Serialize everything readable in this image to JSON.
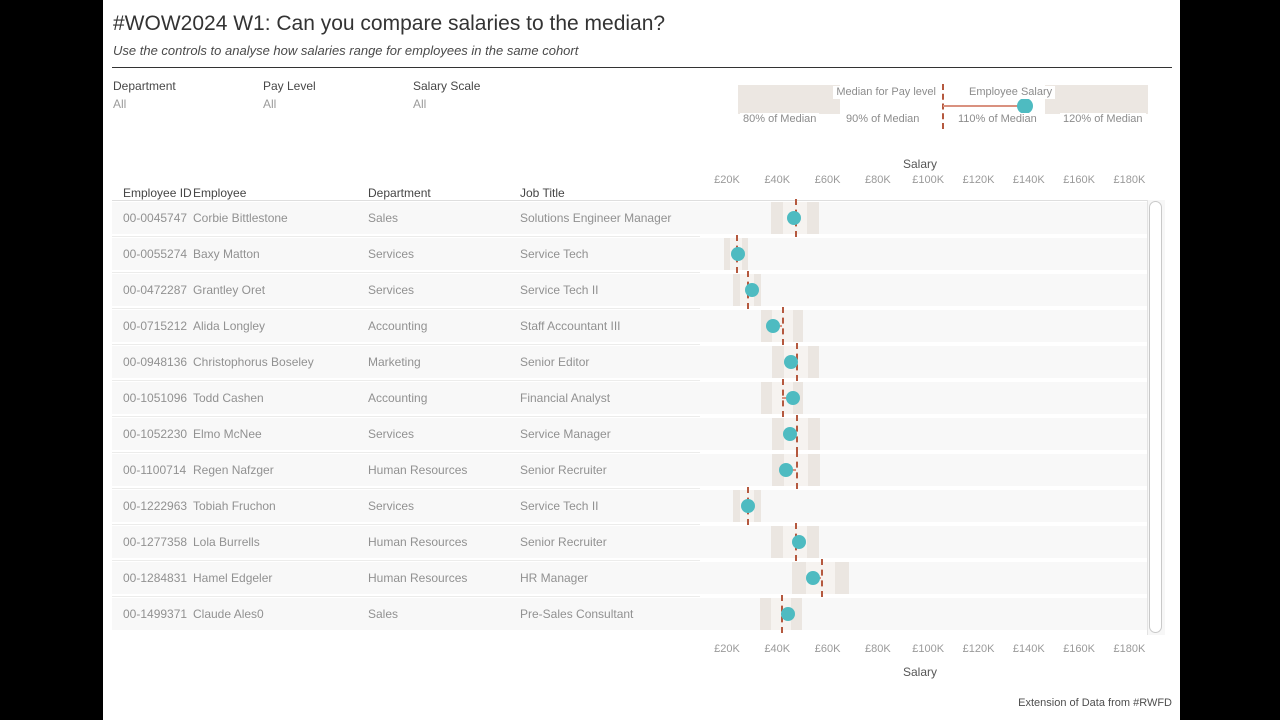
{
  "header": {
    "title": "#WOW2024 W1: Can you compare salaries to the median?",
    "subtitle": "Use the controls to analyse how salaries range for employees in the same cohort"
  },
  "filters": [
    {
      "label": "Department",
      "value": "All"
    },
    {
      "label": "Pay Level",
      "value": "All"
    },
    {
      "label": "Salary Scale",
      "value": "All"
    }
  ],
  "legend": {
    "median_label": "Median for Pay level",
    "salary_label": "Employee Salary",
    "band_labels": [
      "80% of Median",
      "90% of Median",
      "110% of Median",
      "120% of Median"
    ]
  },
  "table": {
    "headers": [
      "Employee ID",
      "Employee",
      "Department",
      "Job Title"
    ],
    "rows": [
      {
        "id": "00-0045747",
        "employee": "Corbie Bittlestone",
        "department": "Sales",
        "job_title": "Solutions Engineer Manager"
      },
      {
        "id": "00-0055274",
        "employee": "Baxy Matton",
        "department": "Services",
        "job_title": "Service Tech"
      },
      {
        "id": "00-0472287",
        "employee": "Grantley Oret",
        "department": "Services",
        "job_title": "Service Tech II"
      },
      {
        "id": "00-0715212",
        "employee": "Alida Longley",
        "department": "Accounting",
        "job_title": "Staff Accountant III"
      },
      {
        "id": "00-0948136",
        "employee": "Christophorus Boseley",
        "department": "Marketing",
        "job_title": "Senior Editor"
      },
      {
        "id": "00-1051096",
        "employee": "Todd Cashen",
        "department": "Accounting",
        "job_title": "Financial Analyst"
      },
      {
        "id": "00-1052230",
        "employee": "Elmo McNee",
        "department": "Services",
        "job_title": "Service Manager"
      },
      {
        "id": "00-1100714",
        "employee": "Regen Nafzger",
        "department": "Human Resources",
        "job_title": "Senior Recruiter"
      },
      {
        "id": "00-1222963",
        "employee": "Tobiah Fruchon",
        "department": "Services",
        "job_title": "Service Tech II"
      },
      {
        "id": "00-1277358",
        "employee": "Lola Burrells",
        "department": "Human Resources",
        "job_title": "Senior Recruiter"
      },
      {
        "id": "00-1284831",
        "employee": "Hamel Edgeler",
        "department": "Human Resources",
        "job_title": "HR Manager"
      },
      {
        "id": "00-1499371",
        "employee": "Claude Ales0",
        "department": "Sales",
        "job_title": "Pre-Sales Consultant"
      }
    ]
  },
  "chart_data": {
    "type": "scatter",
    "title": "Salary",
    "xlabel": "Salary",
    "x_axis": {
      "unit": "GBP_thousands",
      "min": 20,
      "max": 180,
      "step": 20,
      "tick_labels": [
        "£20K",
        "£40K",
        "£60K",
        "£80K",
        "£100K",
        "£120K",
        "£140K",
        "£160K",
        "£180K"
      ]
    },
    "band_rule": {
      "outer_pct": [
        80,
        120
      ],
      "inner_pct": [
        90,
        110
      ]
    },
    "categories": [
      "00-0045747",
      "00-0055274",
      "00-0472287",
      "00-0715212",
      "00-0948136",
      "00-1051096",
      "00-1052230",
      "00-1100714",
      "00-1222963",
      "00-1277358",
      "00-1284831",
      "00-1499371"
    ],
    "series": [
      {
        "name": "Employee Salary",
        "values_k": [
          46.5,
          24.3,
          29.8,
          38.2,
          45.3,
          46.1,
          45.2,
          43.3,
          28.2,
          48.5,
          54.2,
          44.3
        ]
      },
      {
        "name": "Median for Pay level",
        "values_k": [
          47.0,
          23.5,
          27.8,
          42.0,
          47.3,
          42.0,
          47.6,
          47.4,
          28.0,
          47.0,
          57.2,
          41.5
        ]
      }
    ],
    "legend_position": "top-right",
    "grid": false
  },
  "footer": "Extension of Data from #RWFD",
  "colors": {
    "employee_dot": "#4ebbc1",
    "median_line": "#b5593f",
    "connector": "#d9917f",
    "band_outer": "#ebe6e1",
    "band_inner": "#f6f3f0",
    "row_background": "#f8f8f8"
  }
}
